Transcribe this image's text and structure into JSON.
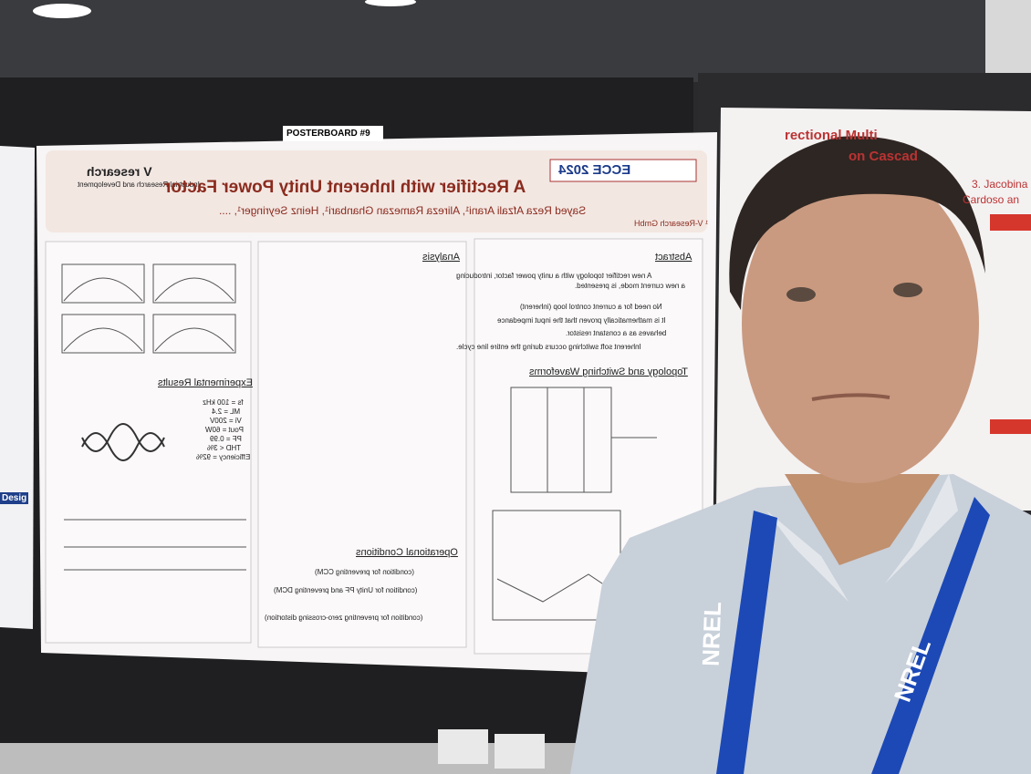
{
  "posterboard": "POSTERBOARD #9",
  "poster": {
    "conference": "ECCE 2024",
    "title": "A Rectifier with Inherent Unity Power Factor",
    "authors": "Sayed Reza Afzali Arani¹, Alireza Ramezan Ghanbari¹, Heinz Seyringer¹, ....",
    "affiliation": "¹ V-Research GmbH",
    "logo": "V research",
    "logo_sub": "Industrial Research and Development",
    "abstract": {
      "heading": "Abstract",
      "text": [
        "A new rectifier topology with a unity power factor, introducing",
        "a new current mode, is presented."
      ],
      "bullets": [
        "No need for a current control loop (inherent)",
        "It is mathematically proven that the input impedance",
        "behaves as a constant resistor.",
        "Inherent soft switching occurs during the entire line cycle."
      ]
    },
    "topology_heading": "Topology and Switching Waveforms",
    "analysis_heading": "Analysis",
    "operational": {
      "heading": "Operational Conditions",
      "conditions": [
        "(condition for preventing CCM)",
        "(condition for Unity PF and preventing DCM)",
        "(condition for preventing zero-crossing distortion)"
      ]
    },
    "experimental": {
      "heading": "Experimental Results",
      "params": [
        "fs = 100 kHz",
        "ML = 2.4",
        "Vi = 200V",
        "Pout = 60W",
        "PF = 0.99",
        "THD < 3%",
        "Efficiency = 92%"
      ]
    }
  },
  "right_poster": [
    "rectional Multi",
    "on Cascad",
    "3. Jacobina",
    "Cardoso an"
  ],
  "left_poster": "Desig",
  "lanyard": "NREL"
}
